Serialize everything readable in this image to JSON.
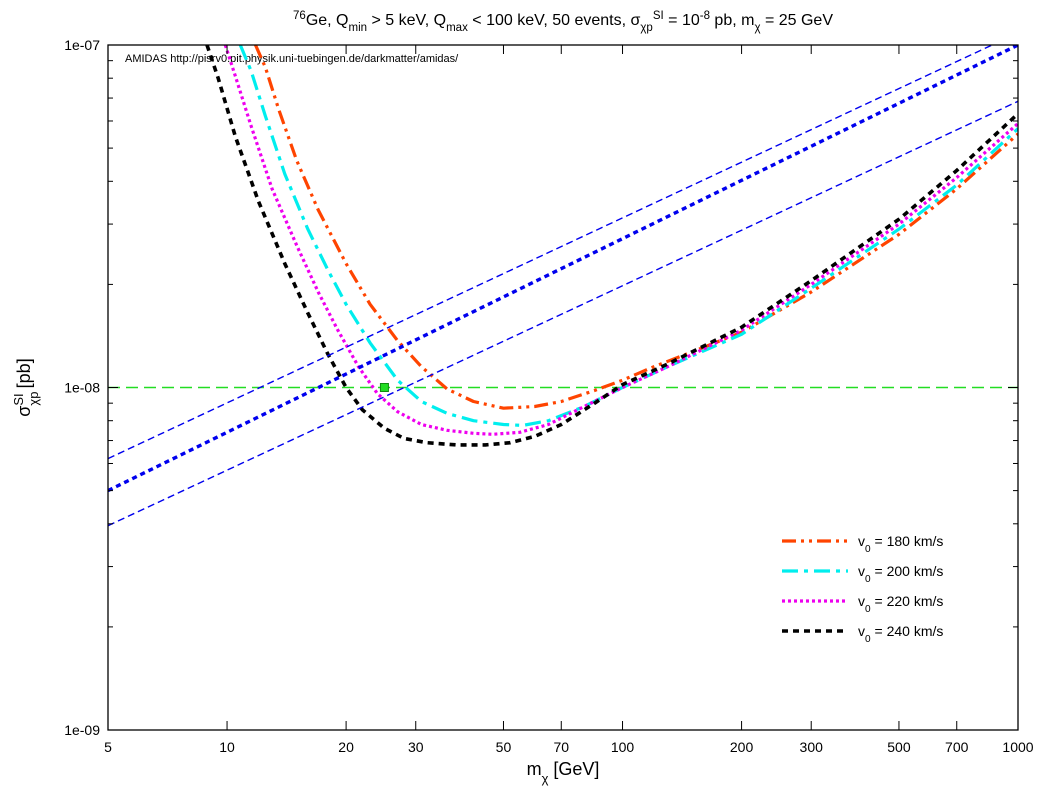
{
  "chart_data": {
    "type": "line",
    "title": {
      "parts": [
        {
          "t": "76",
          "s": "sup"
        },
        {
          "t": "Ge, Q",
          "s": ""
        },
        {
          "t": "min",
          "s": "sub"
        },
        {
          "t": " > 5 keV, Q",
          "s": ""
        },
        {
          "t": "max",
          "s": "sub"
        },
        {
          "t": " < 100 keV, 50 events, σ",
          "s": ""
        },
        {
          "t": "χp",
          "s": "sub"
        },
        {
          "t": "SI",
          "s": "sup"
        },
        {
          "t": " = 10",
          "s": ""
        },
        {
          "t": "-8",
          "s": "sup"
        },
        {
          "t": " pb, m",
          "s": ""
        },
        {
          "t": "χ",
          "s": "sub"
        },
        {
          "t": " = 25 GeV",
          "s": ""
        }
      ]
    },
    "annotation": "AMIDAS   http://pisrv0.pit.physik.uni-tuebingen.de/darkmatter/amidas/",
    "xlabel": {
      "main": "m",
      "sub": "χ",
      "rest": " [GeV]"
    },
    "ylabel": {
      "main": "σ",
      "sub": "χp",
      "sup": "SI",
      "rest": "  [pb]"
    },
    "x_scale": "log",
    "y_scale": "log",
    "xlim": [
      5,
      1000
    ],
    "ylim": [
      1e-09,
      1e-07
    ],
    "x_ticks": [
      {
        "v": 5,
        "label": "5"
      },
      {
        "v": 10,
        "label": "10"
      },
      {
        "v": 20,
        "label": "20"
      },
      {
        "v": 30,
        "label": "30"
      },
      {
        "v": 50,
        "label": "50"
      },
      {
        "v": 70,
        "label": "70"
      },
      {
        "v": 100,
        "label": "100"
      },
      {
        "v": 200,
        "label": "200"
      },
      {
        "v": 300,
        "label": "300"
      },
      {
        "v": 500,
        "label": "500"
      },
      {
        "v": 700,
        "label": "700"
      },
      {
        "v": 1000,
        "label": "1000"
      }
    ],
    "y_ticks": [
      {
        "v": 1e-09,
        "label": "1e-09"
      },
      {
        "v": 1e-08,
        "label": "1e-08"
      },
      {
        "v": 1e-07,
        "label": "1e-07"
      }
    ],
    "grid": false,
    "legend_position": "bottom-right",
    "reference_lines": [
      {
        "kind": "horizontal",
        "y": 1e-08,
        "color": "#22dd22",
        "dash": "long-dash"
      }
    ],
    "reference_point": {
      "x": 25,
      "y": 1e-08,
      "color": "#22dd22"
    },
    "series": [
      {
        "name": "180 km/s",
        "legend": {
          "main": "v",
          "sub": "0",
          "rest": " = 180 km/s"
        },
        "color": "#ff4400",
        "style": "dash-dot-dot",
        "width": 3.2,
        "x": [
          11.8,
          12.5,
          13.5,
          15,
          17,
          20,
          23,
          27,
          31,
          36,
          42,
          50,
          60,
          70,
          85,
          100,
          120,
          150,
          200,
          300,
          500,
          700,
          1000
        ],
        "y": [
          1e-07,
          8.6e-08,
          6.5e-08,
          4.6e-08,
          3.3e-08,
          2.3e-08,
          1.75e-08,
          1.37e-08,
          1.15e-08,
          9.9e-09,
          9.1e-09,
          8.7e-09,
          8.8e-09,
          9.1e-09,
          9.8e-09,
          1.05e-08,
          1.15e-08,
          1.27e-08,
          1.45e-08,
          1.9e-08,
          2.8e-08,
          3.8e-08,
          5.5e-08
        ]
      },
      {
        "name": "200 km/s",
        "legend": {
          "main": "v",
          "sub": "0",
          "rest": " = 200 km/s"
        },
        "color": "#00eeee",
        "style": "dash-dot",
        "width": 3.2,
        "x": [
          10.8,
          11.5,
          12.5,
          14,
          16,
          18,
          20,
          23,
          27,
          31,
          36,
          42,
          50,
          56,
          65,
          80,
          100,
          130,
          200,
          300,
          500,
          700,
          1000
        ],
        "y": [
          1e-07,
          8.4e-08,
          6.2e-08,
          4.2e-08,
          2.9e-08,
          2.2e-08,
          1.75e-08,
          1.35e-08,
          1.05e-08,
          9.1e-09,
          8.4e-09,
          8e-09,
          7.8e-09,
          7.75e-09,
          8e-09,
          8.8e-09,
          1e-08,
          1.15e-08,
          1.43e-08,
          1.95e-08,
          2.9e-08,
          3.9e-08,
          5.7e-08
        ]
      },
      {
        "name": "220 km/s",
        "legend": {
          "main": "v",
          "sub": "0",
          "rest": " = 220 km/s"
        },
        "color": "#ee00ee",
        "style": "dotted",
        "width": 3.2,
        "x": [
          9.9,
          10.5,
          11.5,
          13,
          15,
          17,
          19,
          21.5,
          24,
          27,
          31,
          36,
          42,
          47,
          55,
          65,
          80,
          100,
          130,
          200,
          300,
          500,
          700,
          1000
        ],
        "y": [
          1e-07,
          8.1e-08,
          5.8e-08,
          3.8e-08,
          2.6e-08,
          1.9e-08,
          1.48e-08,
          1.15e-08,
          9.6e-09,
          8.5e-09,
          7.8e-09,
          7.5e-09,
          7.35e-09,
          7.3e-09,
          7.4e-09,
          7.8e-09,
          8.8e-09,
          1e-08,
          1.15e-08,
          1.47e-08,
          2e-08,
          3e-08,
          4.1e-08,
          5.9e-08
        ]
      },
      {
        "name": "240 km/s",
        "legend": {
          "main": "v",
          "sub": "0",
          "rest": " = 240 km/s"
        },
        "color": "#000000",
        "style": "dashed",
        "width": 3.6,
        "x": [
          8.9,
          9.5,
          10.5,
          12,
          14,
          16,
          18,
          20,
          22,
          25,
          28,
          32,
          38,
          45,
          52,
          60,
          70,
          85,
          100,
          130,
          200,
          300,
          500,
          700,
          1000
        ],
        "y": [
          1e-07,
          8e-08,
          5.4e-08,
          3.5e-08,
          2.3e-08,
          1.65e-08,
          1.25e-08,
          1e-08,
          8.6e-09,
          7.6e-09,
          7.1e-09,
          6.9e-09,
          6.8e-09,
          6.8e-09,
          6.9e-09,
          7.2e-09,
          7.8e-09,
          9e-09,
          1.02e-08,
          1.17e-08,
          1.5e-08,
          2.05e-08,
          3.1e-08,
          4.3e-08,
          6.3e-08
        ]
      },
      {
        "color": "#0000ee",
        "style": "dashed-thick",
        "width": 3.4,
        "x": [
          5,
          1000
        ],
        "y": [
          5e-09,
          1e-07
        ]
      },
      {
        "color": "#0000ee",
        "style": "dashed-thin",
        "width": 1.4,
        "x": [
          5,
          860
        ],
        "y": [
          6.2e-09,
          1e-07
        ]
      },
      {
        "color": "#0000ee",
        "style": "dashed-thin",
        "width": 1.4,
        "x": [
          5,
          1000
        ],
        "y": [
          3.95e-09,
          6.85e-08
        ]
      }
    ]
  }
}
